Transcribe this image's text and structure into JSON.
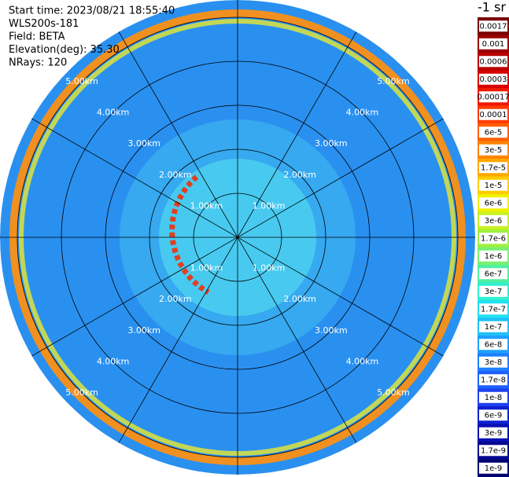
{
  "chart_data": {
    "type": "ppi",
    "info": [
      "Start time: 2023/08/21 18:55:40",
      "WLS200s-181",
      "Field: BETA",
      "Elevation(deg): 35.30",
      "NRays: 120"
    ],
    "colorbar_title": "-1 sr",
    "colorbar_levels": [
      "0.0017",
      "0.001",
      "0.0006",
      "0.0003",
      "0.00017",
      "0.0001",
      "6e-5",
      "3e-5",
      "1.7e-5",
      "1e-5",
      "6e-6",
      "3e-6",
      "1.7e-6",
      "1e-6",
      "6e-7",
      "3e-7",
      "1.7e-7",
      "1e-7",
      "6e-8",
      "3e-8",
      "1.7e-8",
      "1e-8",
      "6e-9",
      "3e-9",
      "1.7e-9",
      "1e-9"
    ],
    "colorbar_colors": [
      "#7a0000",
      "#9a0000",
      "#b80000",
      "#d80000",
      "#f01800",
      "#ff3c00",
      "#ff6000",
      "#ff8400",
      "#ffa800",
      "#ffcc00",
      "#f0f000",
      "#c8f020",
      "#a0f040",
      "#78f070",
      "#50f0a0",
      "#30f0d0",
      "#20e0f0",
      "#20c0f8",
      "#1ea0ff",
      "#1e80ff",
      "#1e60ff",
      "#1e40f0",
      "#1020d0",
      "#0a10b0",
      "#060890",
      "#040470"
    ],
    "range_rings": [
      {
        "value": 1,
        "label": "1.00km"
      },
      {
        "value": 2,
        "label": "2.00km"
      },
      {
        "value": 3,
        "label": "3.00km"
      },
      {
        "value": 4,
        "label": "4.00km"
      },
      {
        "value": 5,
        "label": "5.00km"
      }
    ]
  }
}
